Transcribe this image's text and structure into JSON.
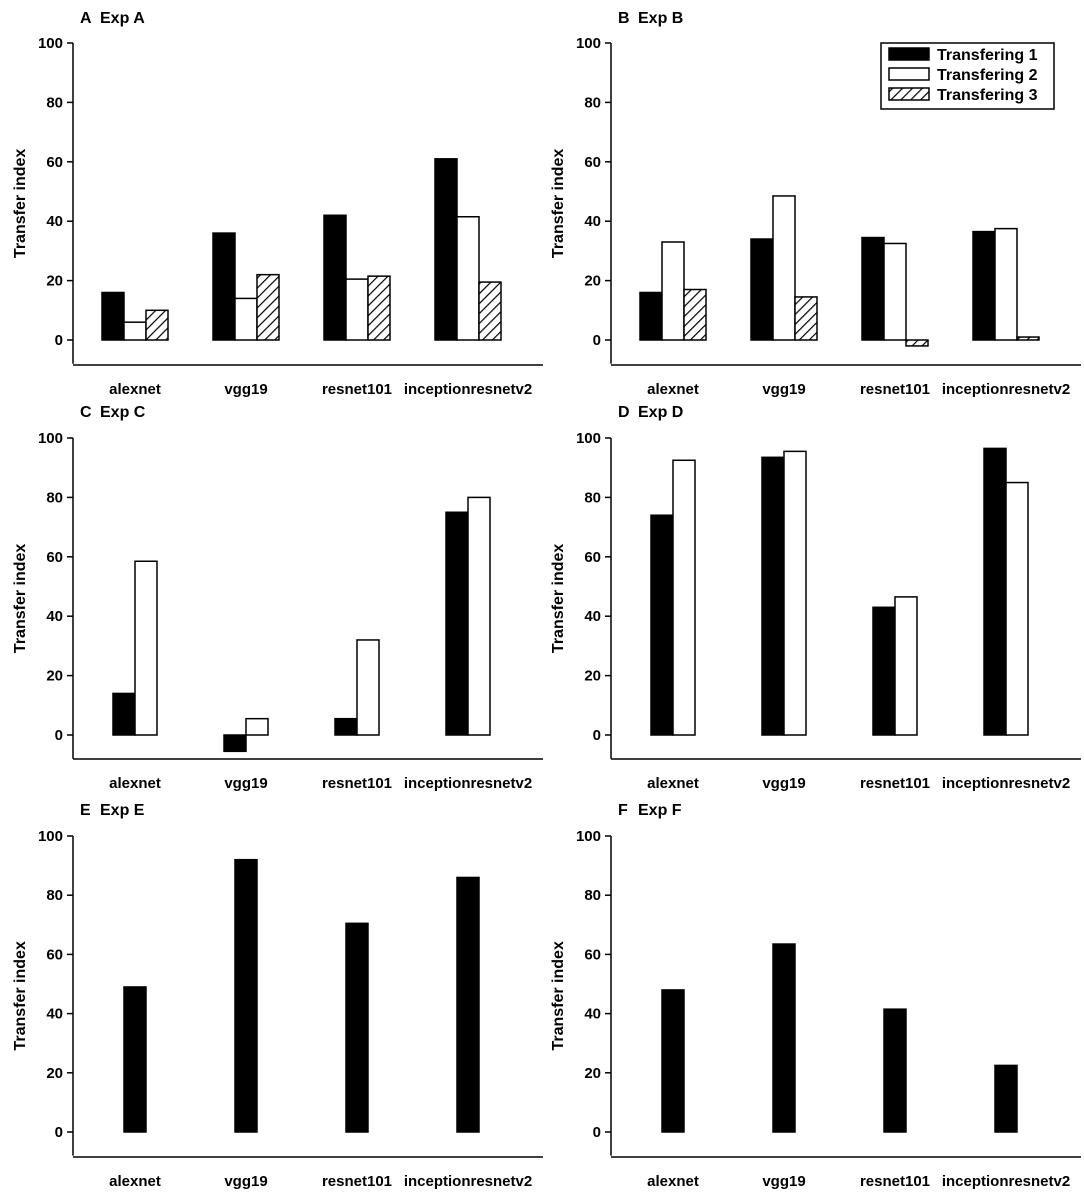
{
  "colors": {
    "series1": "#000000",
    "series2": "#ffffff",
    "series3_hatch": "#000000",
    "axis": "#000000"
  },
  "chart_data": [
    {
      "type": "bar",
      "panel": "A",
      "title": "Exp A",
      "xlabel": "",
      "ylabel": "Transfer index",
      "ylim": [
        -8,
        100
      ],
      "yticks": [
        0,
        20,
        40,
        60,
        80,
        100
      ],
      "categories": [
        "alexnet",
        "vgg19",
        "resnet101",
        "inceptionresnetv2"
      ],
      "series": [
        {
          "name": "Transfering 1",
          "fill": "solid",
          "values": [
            16,
            36,
            42,
            61
          ]
        },
        {
          "name": "Transfering 2",
          "fill": "white",
          "values": [
            6,
            14,
            20.5,
            41.5
          ]
        },
        {
          "name": "Transfering 3",
          "fill": "hatch",
          "values": [
            10,
            22,
            21.5,
            19.5
          ]
        }
      ]
    },
    {
      "type": "bar",
      "panel": "B",
      "title": "Exp B",
      "xlabel": "",
      "ylabel": "Transfer index",
      "ylim": [
        -8,
        100
      ],
      "yticks": [
        0,
        20,
        40,
        60,
        80,
        100
      ],
      "categories": [
        "alexnet",
        "vgg19",
        "resnet101",
        "inceptionresnetv2"
      ],
      "legend": "top-right",
      "series": [
        {
          "name": "Transfering 1",
          "fill": "solid",
          "values": [
            16,
            34,
            34.5,
            36.5
          ]
        },
        {
          "name": "Transfering 2",
          "fill": "white",
          "values": [
            33,
            48.5,
            32.5,
            37.5
          ]
        },
        {
          "name": "Transfering 3",
          "fill": "hatch",
          "values": [
            17,
            14.5,
            -2,
            1
          ]
        }
      ]
    },
    {
      "type": "bar",
      "panel": "C",
      "title": "Exp C",
      "xlabel": "",
      "ylabel": "Transfer index",
      "ylim": [
        -8,
        100
      ],
      "yticks": [
        0,
        20,
        40,
        60,
        80,
        100
      ],
      "categories": [
        "alexnet",
        "vgg19",
        "resnet101",
        "inceptionresnetv2"
      ],
      "series": [
        {
          "name": "Transfering 1",
          "fill": "solid",
          "values": [
            14,
            -5.5,
            5.5,
            75
          ]
        },
        {
          "name": "Transfering 2",
          "fill": "white",
          "values": [
            58.5,
            5.5,
            32,
            80
          ]
        }
      ]
    },
    {
      "type": "bar",
      "panel": "D",
      "title": "Exp D",
      "xlabel": "",
      "ylabel": "Transfer index",
      "ylim": [
        -8,
        100
      ],
      "yticks": [
        0,
        20,
        40,
        60,
        80,
        100
      ],
      "categories": [
        "alexnet",
        "vgg19",
        "resnet101",
        "inceptionresnetv2"
      ],
      "series": [
        {
          "name": "Transfering 1",
          "fill": "solid",
          "values": [
            74,
            93.5,
            43,
            96.5
          ]
        },
        {
          "name": "Transfering 2",
          "fill": "white",
          "values": [
            92.5,
            95.5,
            46.5,
            85
          ]
        }
      ]
    },
    {
      "type": "bar",
      "panel": "E",
      "title": "Exp E",
      "xlabel": "",
      "ylabel": "Transfer index",
      "ylim": [
        -8,
        100
      ],
      "yticks": [
        0,
        20,
        40,
        60,
        80,
        100
      ],
      "categories": [
        "alexnet",
        "vgg19",
        "resnet101",
        "inceptionresnetv2"
      ],
      "series": [
        {
          "name": "Transfering 1",
          "fill": "solid",
          "values": [
            49,
            92,
            70.5,
            86
          ]
        }
      ]
    },
    {
      "type": "bar",
      "panel": "F",
      "title": "Exp F",
      "xlabel": "",
      "ylabel": "Transfer index",
      "ylim": [
        -8,
        100
      ],
      "yticks": [
        0,
        20,
        40,
        60,
        80,
        100
      ],
      "categories": [
        "alexnet",
        "vgg19",
        "resnet101",
        "inceptionresnetv2"
      ],
      "series": [
        {
          "name": "Transfering 1",
          "fill": "solid",
          "values": [
            48,
            63.5,
            41.5,
            22.5
          ]
        }
      ]
    }
  ]
}
